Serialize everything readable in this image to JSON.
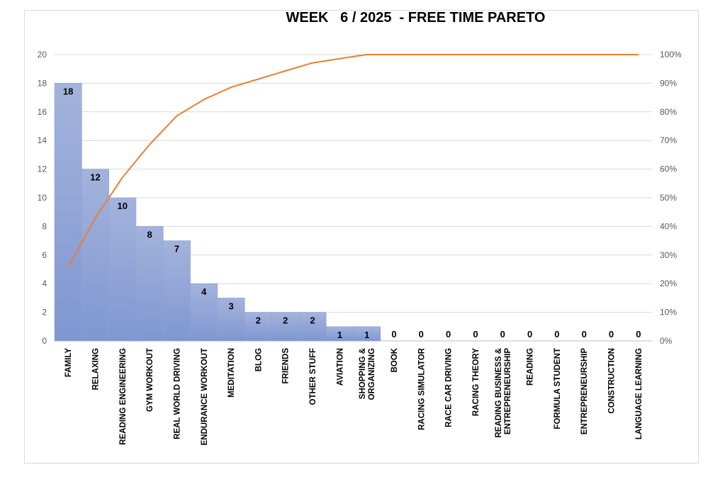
{
  "chart_data": {
    "type": "bar",
    "title": "WEEK   6 / 2025  - FREE TIME PARETO",
    "categories": [
      "FAMILY",
      "RELAXING",
      "READING ENGINEERING",
      "GYM WORKOUT",
      "REAL WORLD DRIVING",
      "ENDURANCE WORKOUT",
      "MEDITATION",
      "BLOG",
      "FRIENDS",
      "OTHER STUFF",
      "AVIATION",
      "SHOPPING & ORGANIZING",
      "BOOK",
      "RACING SIMULATOR",
      "RACE CAR DRIVING",
      "RACING THEORY",
      "READING BUSINESS & ENTREPRENEURSHIP",
      "READING",
      "FORMULA STUDENT",
      "ENTREPRENEURSHIP",
      "CONSTRUCTION",
      "LANGUAGE LEARNING"
    ],
    "category_lines": [
      [
        "FAMILY"
      ],
      [
        "RELAXING"
      ],
      [
        "READING ENGINEERING"
      ],
      [
        "GYM WORKOUT"
      ],
      [
        "REAL WORLD DRIVING"
      ],
      [
        "ENDURANCE WORKOUT"
      ],
      [
        "MEDITATION"
      ],
      [
        "BLOG"
      ],
      [
        "FRIENDS"
      ],
      [
        "OTHER STUFF"
      ],
      [
        "AVIATION"
      ],
      [
        "SHOPPING &",
        "ORGANIZING"
      ],
      [
        "BOOK"
      ],
      [
        "RACING SIMULATOR"
      ],
      [
        "RACE CAR DRIVING"
      ],
      [
        "RACING THEORY"
      ],
      [
        "READING BUSINESS &",
        "ENTREPRENEURSHIP"
      ],
      [
        "READING"
      ],
      [
        "FORMULA STUDENT"
      ],
      [
        "ENTREPRENEURSHIP"
      ],
      [
        "CONSTRUCTION"
      ],
      [
        "LANGUAGE LEARNING"
      ]
    ],
    "series": [
      {
        "kind": "bar",
        "values": [
          18,
          12,
          10,
          8,
          7,
          4,
          3,
          2,
          2,
          2,
          1,
          1,
          0,
          0,
          0,
          0,
          0,
          0,
          0,
          0,
          0,
          0
        ]
      },
      {
        "kind": "line",
        "axis": "right",
        "values": [
          25.7,
          42.9,
          57.1,
          68.6,
          78.6,
          84.3,
          88.6,
          91.4,
          94.3,
          97.1,
          98.6,
          100,
          100,
          100,
          100,
          100,
          100,
          100,
          100,
          100,
          100,
          100
        ]
      }
    ],
    "y_left": {
      "min": 0,
      "max": 20,
      "step": 2,
      "ticks": [
        "0",
        "2",
        "4",
        "6",
        "8",
        "10",
        "12",
        "14",
        "16",
        "18",
        "20"
      ]
    },
    "y_right": {
      "min": 0,
      "max": 100,
      "step": 10,
      "ticks": [
        "0%",
        "10%",
        "20%",
        "30%",
        "40%",
        "50%",
        "60%",
        "70%",
        "80%",
        "90%",
        "100%"
      ]
    },
    "grid": true,
    "legend": "none",
    "colors": {
      "bar_top": "#a3b3dc",
      "bar_bottom": "#7f97d1",
      "bar_edge": "#8ea3d8",
      "line": "#ed7d31",
      "grid": "#d9d9d9",
      "tick_text": "#595959"
    }
  }
}
